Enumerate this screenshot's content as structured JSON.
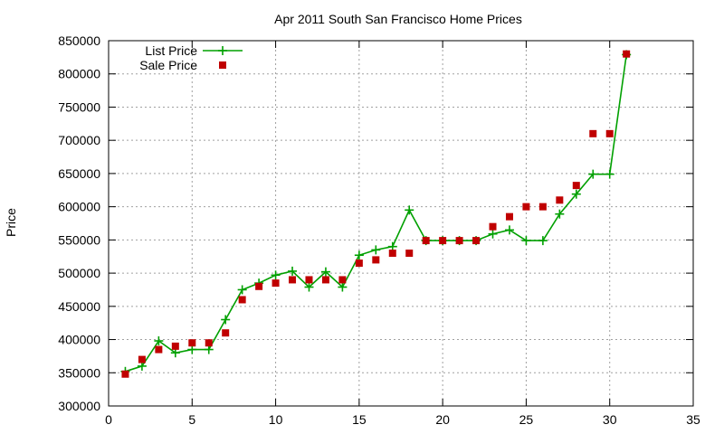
{
  "chart_data": {
    "type": "line",
    "title": "Apr 2011 South San Francisco Home Prices",
    "xlabel": "",
    "ylabel": "Price",
    "xlim": [
      0,
      35
    ],
    "ylim": [
      300000,
      850000
    ],
    "x_ticks": [
      0,
      5,
      10,
      15,
      20,
      25,
      30,
      35
    ],
    "y_ticks": [
      300000,
      350000,
      400000,
      450000,
      500000,
      550000,
      600000,
      650000,
      700000,
      750000,
      800000,
      850000
    ],
    "grid": true,
    "legend_position": "top-left",
    "series": [
      {
        "name": "List Price",
        "style": "line-with-plus-markers",
        "color": "#00a000",
        "x": [
          1,
          2,
          3,
          4,
          5,
          6,
          7,
          8,
          9,
          10,
          11,
          12,
          13,
          14,
          15,
          16,
          17,
          18,
          19,
          20,
          21,
          22,
          23,
          24,
          25,
          26,
          27,
          28,
          29,
          30,
          31
        ],
        "y": [
          352000,
          360000,
          398000,
          380000,
          385000,
          385000,
          430000,
          475000,
          485000,
          497000,
          503000,
          479000,
          502000,
          479000,
          527000,
          535000,
          540000,
          595000,
          549000,
          549000,
          549000,
          549000,
          559000,
          565000,
          549000,
          549000,
          589000,
          619000,
          649000,
          649000,
          829000
        ]
      },
      {
        "name": "Sale Price",
        "style": "square-markers",
        "color": "#c00000",
        "x": [
          1,
          2,
          3,
          4,
          5,
          6,
          7,
          8,
          9,
          10,
          11,
          12,
          13,
          14,
          15,
          16,
          17,
          18,
          19,
          20,
          21,
          22,
          23,
          24,
          25,
          26,
          27,
          28,
          29,
          30,
          31
        ],
        "y": [
          348000,
          370000,
          385000,
          390000,
          395000,
          395000,
          410000,
          460000,
          480000,
          485000,
          490000,
          490000,
          490000,
          490000,
          515000,
          520000,
          530000,
          530000,
          549000,
          549000,
          549000,
          549000,
          570000,
          585000,
          600000,
          600000,
          610000,
          632000,
          710000,
          710000,
          830000
        ]
      }
    ]
  }
}
